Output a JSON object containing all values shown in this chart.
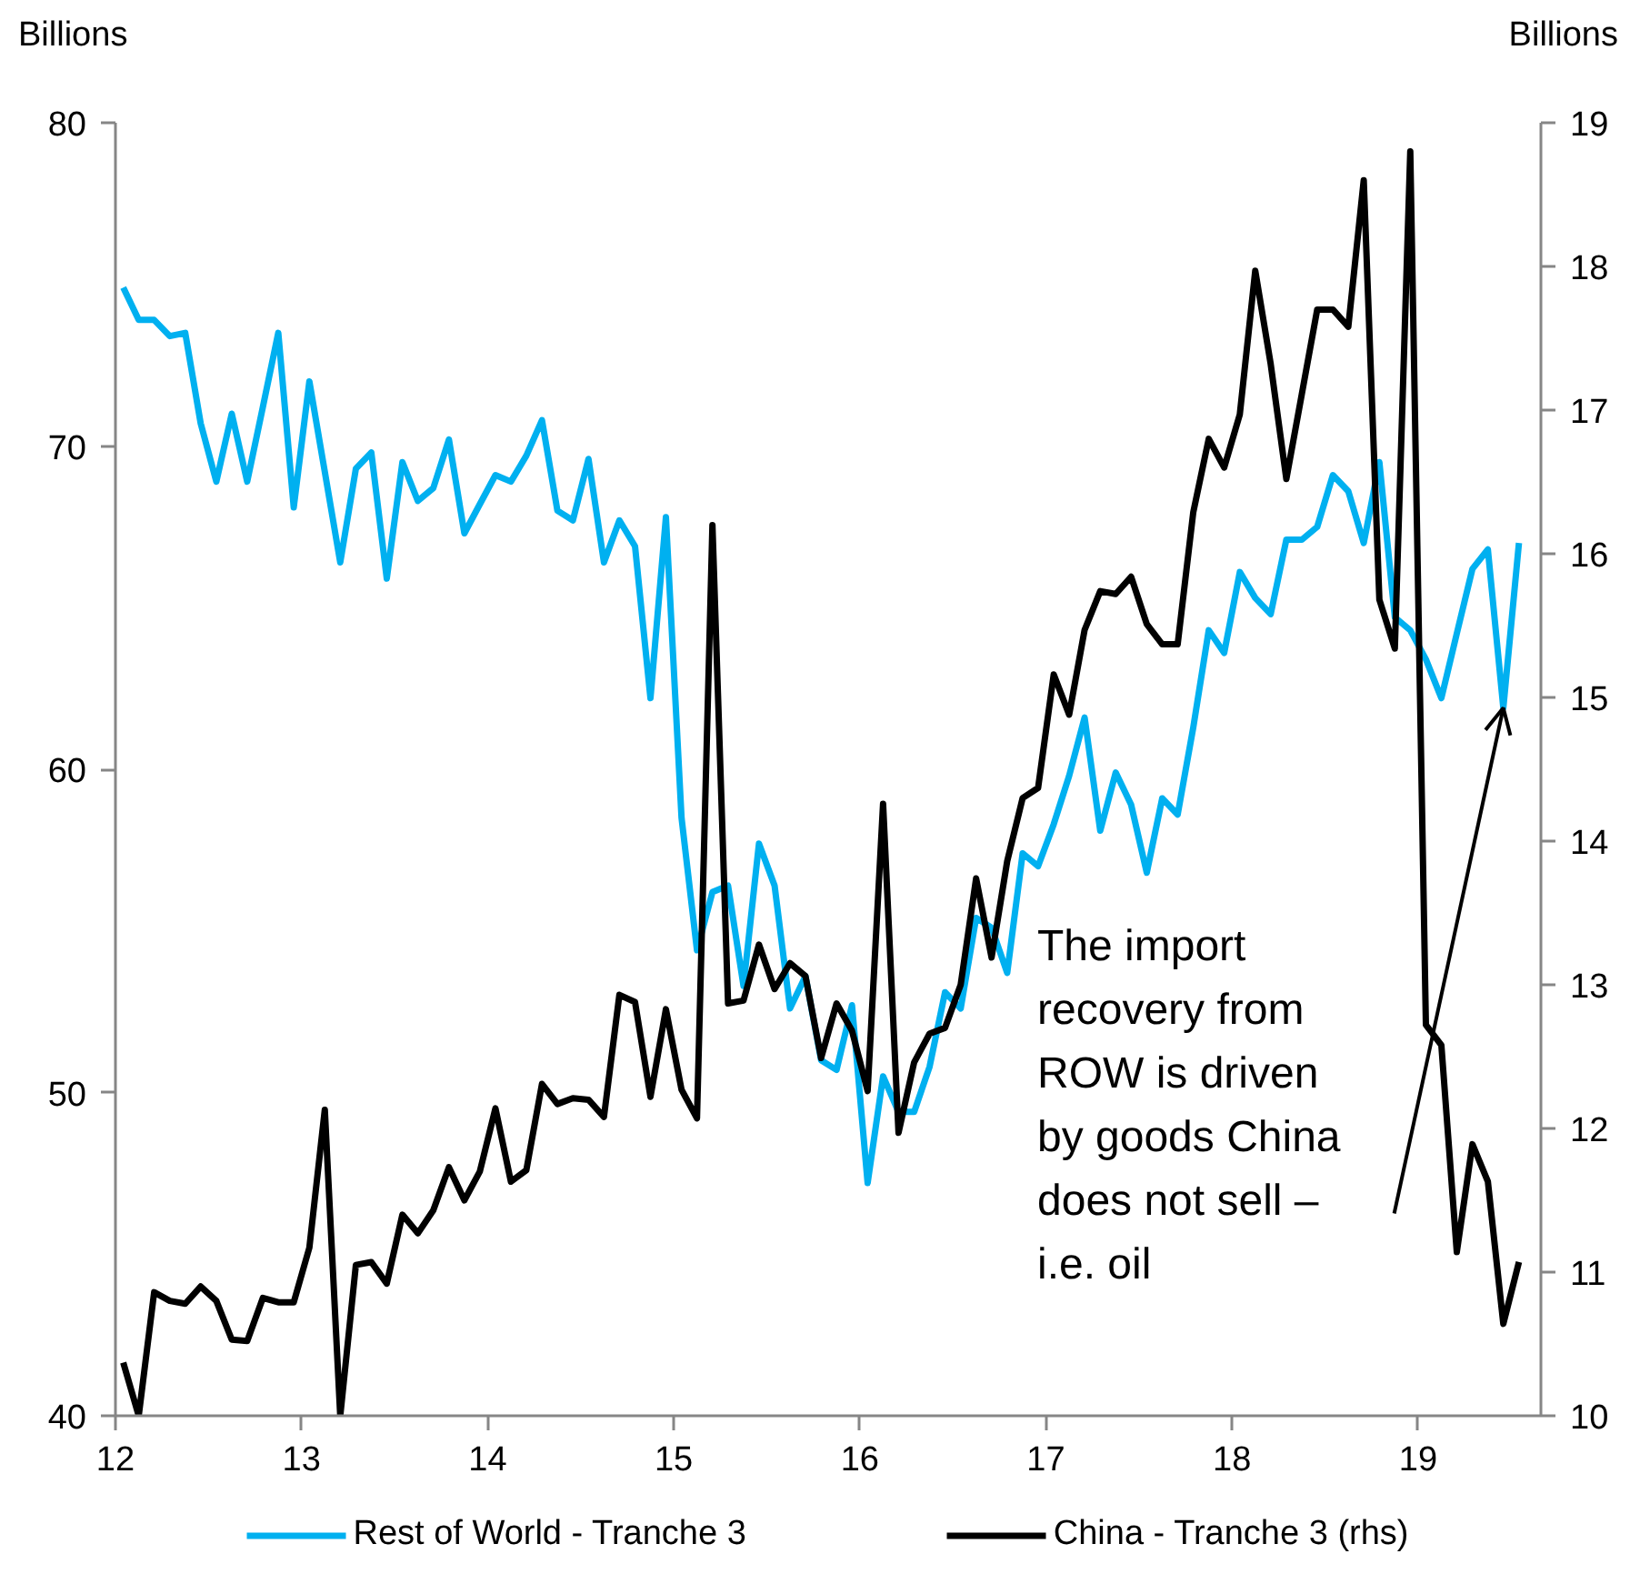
{
  "chart_data": {
    "type": "line",
    "ylabel": "Billions",
    "y2label": "Billions",
    "xlim": [
      12,
      19.66
    ],
    "xticks": [
      12,
      13,
      14,
      15,
      16,
      17,
      18,
      19
    ],
    "ylim": [
      40,
      80
    ],
    "yticks": [
      40,
      50,
      60,
      70,
      80
    ],
    "y2lim": [
      10,
      19
    ],
    "y2ticks": [
      10,
      11,
      12,
      13,
      14,
      15,
      16,
      17,
      18,
      19
    ],
    "x": [
      12.042,
      12.125,
      12.208,
      12.292,
      12.375,
      12.458,
      12.542,
      12.625,
      12.708,
      12.792,
      12.875,
      12.958,
      13.042,
      13.125,
      13.208,
      13.292,
      13.375,
      13.458,
      13.542,
      13.625,
      13.708,
      13.792,
      13.875,
      13.958,
      14.042,
      14.125,
      14.208,
      14.292,
      14.375,
      14.458,
      14.542,
      14.625,
      14.708,
      14.792,
      14.875,
      14.958,
      15.042,
      15.125,
      15.208,
      15.292,
      15.375,
      15.458,
      15.542,
      15.625,
      15.708,
      15.792,
      15.875,
      15.958,
      16.042,
      16.125,
      16.208,
      16.292,
      16.375,
      16.458,
      16.542,
      16.625,
      16.708,
      16.792,
      16.875,
      16.958,
      17.042,
      17.125,
      17.208,
      17.292,
      17.375,
      17.458,
      17.542,
      17.625,
      17.708,
      17.792,
      17.875,
      17.958,
      18.042,
      18.125,
      18.208,
      18.292,
      18.375,
      18.458,
      18.542,
      18.625,
      18.708,
      18.792,
      18.875,
      18.958,
      19.042,
      19.125,
      19.208,
      19.292,
      19.375,
      19.458,
      19.542
    ],
    "series": [
      {
        "name": "Rest of World - Tranche 3",
        "color": "#00b0f0",
        "values": [
          74.9,
          73.9,
          73.9,
          73.4,
          73.5,
          70.7,
          68.9,
          71.0,
          68.9,
          71.2,
          73.5,
          68.1,
          72.0,
          69.2,
          66.4,
          69.3,
          69.8,
          65.9,
          69.5,
          68.3,
          68.7,
          70.2,
          67.3,
          68.2,
          69.1,
          68.9,
          69.7,
          70.8,
          68.0,
          67.7,
          69.6,
          66.4,
          67.7,
          66.9,
          62.2,
          67.8,
          58.5,
          54.4,
          56.2,
          56.4,
          53.3,
          57.7,
          56.4,
          52.6,
          53.6,
          51.0,
          50.7,
          52.7,
          47.2,
          50.5,
          49.4,
          49.4,
          50.8,
          53.1,
          52.6,
          55.4,
          55.1,
          53.7,
          57.4,
          57.0,
          58.3,
          59.8,
          61.6,
          58.1,
          59.9,
          58.9,
          56.8,
          59.1,
          58.6,
          61.3,
          64.3,
          63.6,
          66.1,
          65.3,
          64.8,
          67.1,
          67.1,
          67.5,
          69.1,
          68.6,
          67.0,
          69.5,
          64.7,
          64.3,
          63.4,
          62.2,
          64.2,
          66.2,
          66.8,
          61.9,
          67.0
        ]
      },
      {
        "name": "China - Tranche 3 (rhs)",
        "color": "#000000",
        "axis": "y2",
        "values": [
          10.37,
          10.0,
          10.86,
          10.8,
          10.78,
          10.9,
          10.8,
          10.53,
          10.52,
          10.82,
          10.79,
          10.79,
          11.17,
          12.13,
          10.0,
          11.05,
          11.07,
          10.92,
          11.4,
          11.27,
          11.43,
          11.73,
          11.5,
          11.7,
          12.14,
          11.63,
          11.71,
          12.31,
          12.17,
          12.21,
          12.2,
          12.08,
          12.93,
          12.88,
          12.22,
          12.83,
          12.27,
          12.07,
          16.2,
          12.87,
          12.89,
          13.28,
          12.97,
          13.15,
          13.06,
          12.49,
          12.87,
          12.68,
          12.26,
          14.26,
          11.97,
          12.46,
          12.66,
          12.7,
          13.0,
          13.74,
          13.19,
          13.86,
          14.3,
          14.37,
          15.16,
          14.88,
          15.47,
          15.74,
          15.72,
          15.84,
          15.51,
          15.37,
          15.37,
          16.29,
          16.8,
          16.6,
          16.97,
          17.97,
          17.32,
          16.52,
          17.11,
          17.7,
          17.7,
          17.58,
          18.6,
          15.68,
          15.34,
          18.8,
          12.72,
          12.58,
          11.14,
          11.89,
          11.63,
          10.64,
          11.07
        ]
      }
    ],
    "annotations": [
      {
        "text": "The import recovery from ROW is driven by goods China does not sell – i.e. oil",
        "x": 19.458,
        "y": 61.9
      }
    ],
    "legend": "bottom",
    "grid": false,
    "line_style": "solid"
  }
}
